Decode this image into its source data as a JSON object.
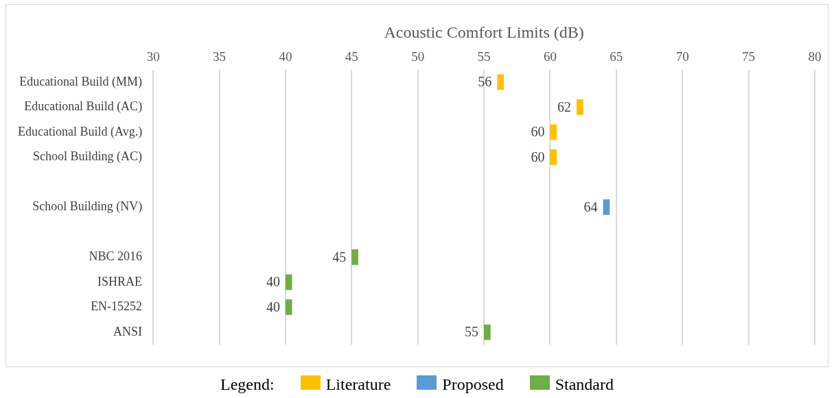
{
  "chart_data": {
    "type": "bar",
    "orientation": "horizontal",
    "xlabel": "Acoustic Comfort Limits (dB)",
    "legend_title": "Legend:",
    "legend": "bottom",
    "grid": "x",
    "categories": [
      "Educational Build (MM)",
      "Educational Build (AC)",
      "Educational Build (Avg.)",
      "School Building (AC)",
      null,
      "School Building (NV)",
      null,
      "NBC 2016",
      "ISHRAE",
      "EN-15252",
      "ANSI"
    ],
    "xlim": [
      30,
      80
    ],
    "xticks": [
      30,
      35,
      40,
      45,
      50,
      55,
      60,
      65,
      70,
      75,
      80
    ],
    "series": [
      {
        "name": "Literature",
        "color": "#ffc000",
        "base": [
          56,
          62,
          60,
          60,
          null,
          null,
          null,
          null,
          null,
          null,
          null
        ],
        "values": [
          0.5,
          0.5,
          0.5,
          0.5,
          null,
          null,
          null,
          null,
          null,
          null,
          null
        ],
        "value_labels": [
          "56",
          "62",
          "60",
          "60",
          null,
          null,
          null,
          null,
          null,
          null,
          null
        ]
      },
      {
        "name": "Proposed",
        "color": "#5b9bd5",
        "base": [
          null,
          null,
          null,
          null,
          null,
          64,
          null,
          null,
          null,
          null,
          null
        ],
        "values": [
          null,
          null,
          null,
          null,
          null,
          0.5,
          null,
          null,
          null,
          null,
          null
        ],
        "value_labels": [
          null,
          null,
          null,
          null,
          null,
          "64",
          null,
          null,
          null,
          null,
          null
        ]
      },
      {
        "name": "Standard",
        "color": "#70ad47",
        "base": [
          null,
          null,
          null,
          null,
          null,
          null,
          null,
          45,
          40,
          40,
          55
        ],
        "values": [
          null,
          null,
          null,
          null,
          null,
          null,
          null,
          0.5,
          0.5,
          0.5,
          0.5
        ],
        "value_labels": [
          null,
          null,
          null,
          null,
          null,
          null,
          null,
          "45",
          "40",
          "40",
          "55"
        ]
      }
    ]
  }
}
